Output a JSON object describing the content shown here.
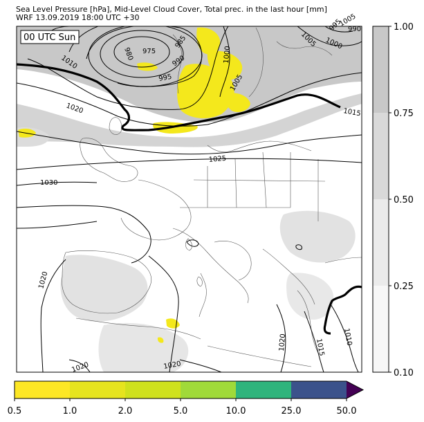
{
  "header": {
    "title_line1": "Sea Level Pressure [hPa], Mid-Level Cloud Cover, Total prec. in the last hour [mm]",
    "title_line2": "WRF 13.09.2019 18:00 UTC +30"
  },
  "map": {
    "time_stamp": "00 UTC Sun",
    "isobar_labels": [
      "975",
      "980",
      "985",
      "990",
      "995",
      "1000",
      "1005",
      "1005",
      "1000",
      "1005",
      "995",
      "990",
      "1010",
      "1015",
      "1020",
      "1025",
      "1030",
      "1020",
      "1020",
      "1020",
      "1015",
      "1010",
      "1020"
    ],
    "colors": {
      "cloud_high": "#c8c8c8",
      "cloud_mid": "#dcdcdc",
      "cloud_low": "#ebebeb",
      "precip": "#f4e81c",
      "isobar": "#000000"
    }
  },
  "cloud_colorbar": {
    "ticks": [
      "1.00",
      "0.75",
      "0.50",
      "0.25",
      "0.10"
    ],
    "colors": [
      "#c8c8c8",
      "#d9d9d9",
      "#ebebeb",
      "#f7f7f7"
    ]
  },
  "precip_colorbar": {
    "ticks": [
      "0.5",
      "1.0",
      "2.0",
      "5.0",
      "10.0",
      "25.0",
      "50.0"
    ],
    "colors": [
      "#fde725",
      "#e6e41e",
      "#cfe11d",
      "#a0da39",
      "#2fb47c",
      "#3b528b",
      "#440154"
    ]
  }
}
